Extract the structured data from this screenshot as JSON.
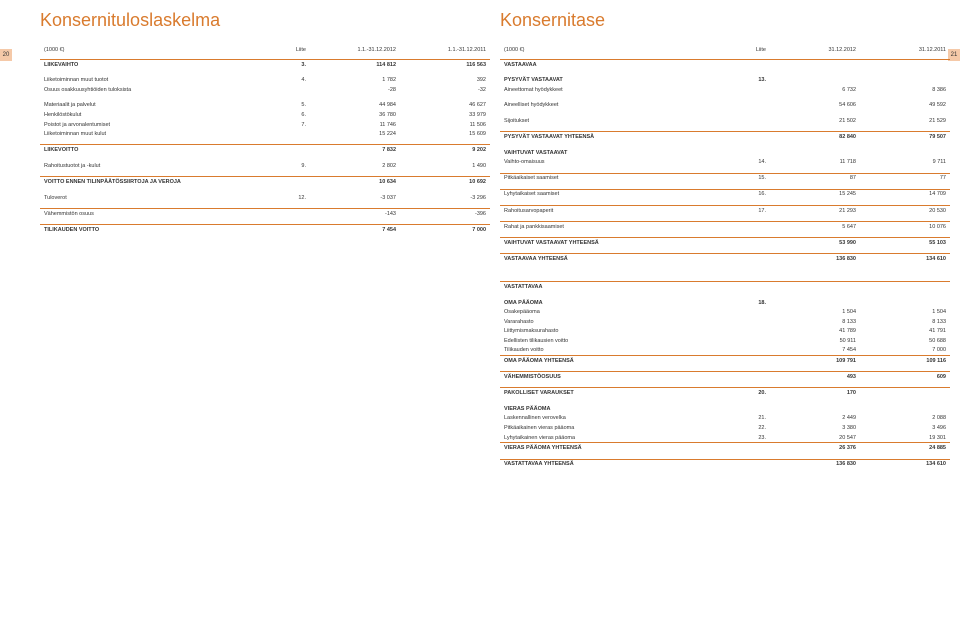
{
  "page_left_no": "20",
  "page_right_no": "21",
  "colors": {
    "accent": "#d97b2e",
    "band": "#f5c9a8",
    "text": "#333333"
  },
  "left": {
    "title": "Konsernituloslaskelma",
    "headers": {
      "unit": "(1000 €)",
      "note": "Liite",
      "c1": "1.1.-31.12.2012",
      "c2": "1.1.-31.12.2011"
    },
    "rows": [
      {
        "t": "bold rule",
        "lbl": "LIIKEVAIHTO",
        "note": "3.",
        "c1": "114 812",
        "c2": "116 563"
      },
      {
        "t": "sp"
      },
      {
        "lbl": "Liiketoiminnan muut tuotot",
        "note": "4.",
        "c1": "1 782",
        "c2": "392"
      },
      {
        "lbl": "Osuus osakkuusyhtiöiden tuloksista",
        "note": "",
        "c1": "-28",
        "c2": "-32"
      },
      {
        "t": "sp"
      },
      {
        "lbl": "Materiaalit ja palvelut",
        "note": "5.",
        "c1": "44 984",
        "c2": "46 627"
      },
      {
        "lbl": "Henkilöstökulut",
        "note": "6.",
        "c1": "36 780",
        "c2": "33 979"
      },
      {
        "lbl": "Poistot ja arvonalentumiset",
        "note": "7.",
        "c1": "11 746",
        "c2": "11 506"
      },
      {
        "lbl": "Liiketoiminnan muut kulut",
        "note": "",
        "c1": "15 224",
        "c2": "15 609"
      },
      {
        "t": "sp"
      },
      {
        "t": "bold rule",
        "lbl": "LIIKEVOITTO",
        "note": "",
        "c1": "7 832",
        "c2": "9 202"
      },
      {
        "t": "sp"
      },
      {
        "lbl": "Rahoitustuotot ja -kulut",
        "note": "9.",
        "c1": "2 802",
        "c2": "1 490"
      },
      {
        "t": "sp"
      },
      {
        "t": "bold rule",
        "lbl": "VOITTO ENNEN TILINPÄÄTÖSSIIRTOJA JA VEROJA",
        "note": "",
        "c1": "10 634",
        "c2": "10 692"
      },
      {
        "t": "sp"
      },
      {
        "lbl": "Tuloverot",
        "note": "12.",
        "c1": "-3 037",
        "c2": "-3 296"
      },
      {
        "t": "sp"
      },
      {
        "t": "rule",
        "lbl": "Vähemmistön osuus",
        "note": "",
        "c1": "-143",
        "c2": "-396"
      },
      {
        "t": "sp"
      },
      {
        "t": "bold rule",
        "lbl": "TILIKAUDEN VOITTO",
        "note": "",
        "c1": "7 454",
        "c2": "7 000"
      }
    ]
  },
  "right": {
    "title": "Konsernitase",
    "headers": {
      "unit": "(1000 €)",
      "note": "Liite",
      "c1": "31.12.2012",
      "c2": "31.12.2011"
    },
    "rows": [
      {
        "t": "bold rule",
        "lbl": "VASTAAVAA",
        "note": "",
        "c1": "",
        "c2": ""
      },
      {
        "t": "sp"
      },
      {
        "t": "bold",
        "lbl": "PYSYVÄT VASTAAVAT",
        "note": "13.",
        "c1": "",
        "c2": ""
      },
      {
        "lbl": "Aineettomat hyödykkeet",
        "note": "",
        "c1": "6 732",
        "c2": "8 386"
      },
      {
        "t": "sp"
      },
      {
        "lbl": "Aineelliset hyödykkeet",
        "note": "",
        "c1": "54 606",
        "c2": "49 592"
      },
      {
        "t": "sp"
      },
      {
        "lbl": "Sijoitukset",
        "note": "",
        "c1": "21 502",
        "c2": "21 529"
      },
      {
        "t": "sp"
      },
      {
        "t": "bold rule",
        "lbl": "PYSYVÄT VASTAAVAT YHTEENSÄ",
        "note": "",
        "c1": "82 840",
        "c2": "79 507"
      },
      {
        "t": "sp"
      },
      {
        "t": "bold",
        "lbl": "VAIHTUVAT VASTAAVAT",
        "note": "",
        "c1": "",
        "c2": ""
      },
      {
        "lbl": "Vaihto-omaisuus",
        "note": "14.",
        "c1": "11 718",
        "c2": "9 711"
      },
      {
        "t": "sp"
      },
      {
        "t": "rule",
        "lbl": "Pitkäaikaiset saamiset",
        "note": "15.",
        "c1": "87",
        "c2": "77"
      },
      {
        "t": "sp"
      },
      {
        "t": "rule",
        "lbl": "Lyhytaikaiset saamiset",
        "note": "16.",
        "c1": "15 245",
        "c2": "14 709"
      },
      {
        "t": "sp"
      },
      {
        "t": "rule",
        "lbl": "Rahoitusarvopaperit",
        "note": "17.",
        "c1": "21 293",
        "c2": "20 530"
      },
      {
        "t": "sp"
      },
      {
        "t": "rule",
        "lbl": "Rahat ja pankkisaamiset",
        "note": "",
        "c1": "5 647",
        "c2": "10 076"
      },
      {
        "t": "sp"
      },
      {
        "t": "bold rule",
        "lbl": "VAIHTUVAT VASTAAVAT YHTEENSÄ",
        "note": "",
        "c1": "53 990",
        "c2": "55 103"
      },
      {
        "t": "sp"
      },
      {
        "t": "bold rule",
        "lbl": "VASTAAVAA YHTEENSÄ",
        "note": "",
        "c1": "136 830",
        "c2": "134 610"
      },
      {
        "t": "sp"
      },
      {
        "t": "sp"
      },
      {
        "t": "sp"
      },
      {
        "t": "bold rule",
        "lbl": "VASTATTAVAA",
        "note": "",
        "c1": "",
        "c2": ""
      },
      {
        "t": "sp"
      },
      {
        "t": "bold",
        "lbl": "OMA PÄÄOMA",
        "note": "18.",
        "c1": "",
        "c2": ""
      },
      {
        "lbl": "Osakepääoma",
        "note": "",
        "c1": "1 504",
        "c2": "1 504"
      },
      {
        "lbl": "Vararahasto",
        "note": "",
        "c1": "8 133",
        "c2": "8 133"
      },
      {
        "lbl": "Liittymismaksurahasto",
        "note": "",
        "c1": "41 789",
        "c2": "41 791"
      },
      {
        "lbl": "Edellisten tilikausien voitto",
        "note": "",
        "c1": "50 911",
        "c2": "50 688"
      },
      {
        "lbl": "Tilikauden voitto",
        "note": "",
        "c1": "7 454",
        "c2": "7 000"
      },
      {
        "t": "bold rule",
        "lbl": "OMA PÄÄOMA YHTEENSÄ",
        "note": "",
        "c1": "109 791",
        "c2": "109 116"
      },
      {
        "t": "sp"
      },
      {
        "t": "bold rule",
        "lbl": "VÄHEMMISTÖOSUUS",
        "note": "",
        "c1": "493",
        "c2": "609"
      },
      {
        "t": "sp"
      },
      {
        "t": "bold rule",
        "lbl": "PAKOLLISET VARAUKSET",
        "note": "20.",
        "c1": "170",
        "c2": ""
      },
      {
        "t": "sp"
      },
      {
        "t": "bold",
        "lbl": "VIERAS PÄÄOMA",
        "note": "",
        "c1": "",
        "c2": ""
      },
      {
        "lbl": "Laskennallinen verovelka",
        "note": "21.",
        "c1": "2 449",
        "c2": "2 088"
      },
      {
        "lbl": "Pitkäaikainen vieras pääoma",
        "note": "22.",
        "c1": "3 380",
        "c2": "3 496"
      },
      {
        "lbl": "Lyhytaikainen vieras pääoma",
        "note": "23.",
        "c1": "20 547",
        "c2": "19 301"
      },
      {
        "t": "bold rule",
        "lbl": "VIERAS PÄÄOMA YHTEENSÄ",
        "note": "",
        "c1": "26 376",
        "c2": "24 885"
      },
      {
        "t": "sp"
      },
      {
        "t": "bold rule",
        "lbl": "VASTATTAVAA YHTEENSÄ",
        "note": "",
        "c1": "136 830",
        "c2": "134 610"
      }
    ]
  }
}
